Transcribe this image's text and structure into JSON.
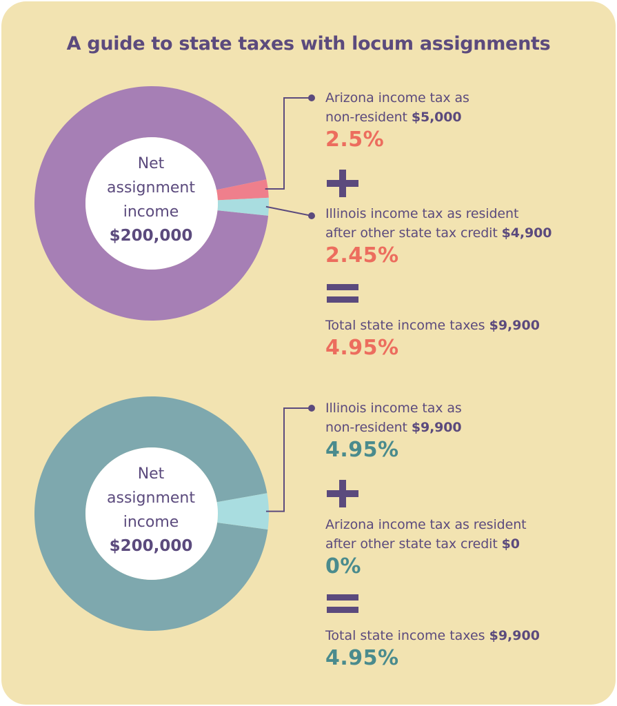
{
  "title": "A guide to state taxes with locum assignments",
  "colors": {
    "background": "#f2e3b1",
    "text": "#5b4a7d",
    "accent_coral": "#ec6d5e",
    "accent_teal": "#4a8b8d",
    "purple": "#a67fb5",
    "pink": "#ef7f8c",
    "light_teal": "#a9dde0",
    "slate_teal": "#7ea8ae"
  },
  "chart_data": [
    {
      "type": "pie",
      "center_label": {
        "line1": "Net",
        "line2": "assignment",
        "line3": "income",
        "amount": "$200,000"
      },
      "slices": [
        {
          "label": "Arizona income tax as non-resident",
          "value": 5000,
          "percent": 2.5,
          "color": "#ef7f8c"
        },
        {
          "label": "Illinois income tax as resident after other state tax credit",
          "value": 4900,
          "percent": 2.45,
          "color": "#a9dde0"
        },
        {
          "label": "Net assignment income remainder",
          "value": 190100,
          "percent": 95.05,
          "color": "#a67fb5"
        }
      ],
      "items": [
        {
          "line1": "Arizona income tax as",
          "line2": "non-resident",
          "amount": "$5,000",
          "percent": "2.5%"
        },
        {
          "line1": "Illinois income tax as resident",
          "line2": "after other state tax credit",
          "amount": "$4,900",
          "percent": "2.45%"
        }
      ],
      "operators": {
        "plus": "+",
        "equals": "="
      },
      "total": {
        "label": "Total state income taxes",
        "amount": "$9,900",
        "percent": "4.95%"
      }
    },
    {
      "type": "pie",
      "center_label": {
        "line1": "Net",
        "line2": "assignment",
        "line3": "income",
        "amount": "$200,000"
      },
      "slices": [
        {
          "label": "Illinois income tax as non-resident",
          "value": 9900,
          "percent": 4.95,
          "color": "#a9dde0"
        },
        {
          "label": "Arizona income tax as resident after other state tax credit",
          "value": 0,
          "percent": 0,
          "color": "#ef7f8c"
        },
        {
          "label": "Net assignment income remainder",
          "value": 190100,
          "percent": 95.05,
          "color": "#7ea8ae"
        }
      ],
      "items": [
        {
          "line1": "Illinois income tax as",
          "line2": "non-resident",
          "amount": "$9,900",
          "percent": "4.95%"
        },
        {
          "line1": "Arizona income tax as resident",
          "line2": "after other state tax credit",
          "amount": "$0",
          "percent": "0%"
        }
      ],
      "operators": {
        "plus": "+",
        "equals": "="
      },
      "total": {
        "label": "Total state income taxes",
        "amount": "$9,900",
        "percent": "4.95%"
      }
    }
  ]
}
